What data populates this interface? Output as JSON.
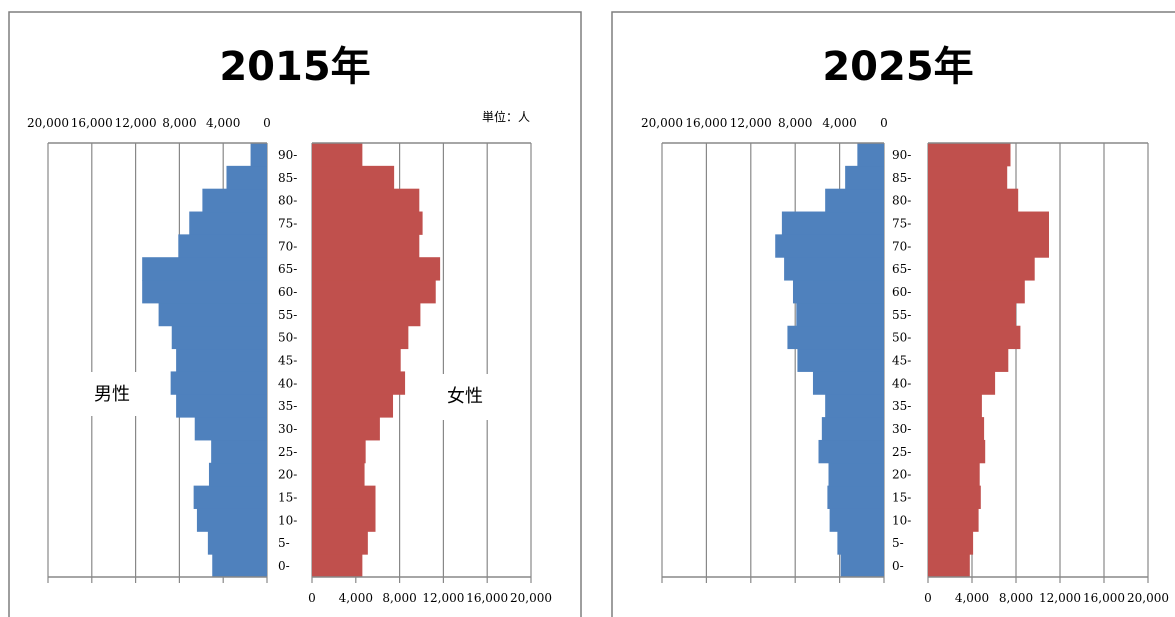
{
  "colors": {
    "male": "#4f81bd",
    "female": "#c0504d",
    "grid": "#888888",
    "frame": "#7f7f7f"
  },
  "chart_data": [
    {
      "type": "bar",
      "subtype": "population-pyramid",
      "title": "2015年",
      "unit_label": "単位：人",
      "male_label": "男性",
      "female_label": "女性",
      "xlim": [
        0,
        20000
      ],
      "x_ticks": [
        "0",
        "4,000",
        "8,000",
        "12,000",
        "16,000",
        "20,000"
      ],
      "male_ticks": [
        "20,000",
        "16,000",
        "12,000",
        "8,000",
        "4,000",
        "0"
      ],
      "age_labels": [
        "0-",
        "5-",
        "10-",
        "15-",
        "20-",
        "25-",
        "30-",
        "35-",
        "40-",
        "45-",
        "50-",
        "55-",
        "60-",
        "65-",
        "70-",
        "75-",
        "80-",
        "85-",
        "90-"
      ],
      "series": [
        {
          "name": "男性",
          "values": [
            5000,
            5400,
            6400,
            6700,
            5300,
            5100,
            6600,
            8300,
            8800,
            8300,
            8700,
            9900,
            11400,
            11400,
            8100,
            7100,
            5900,
            3700,
            1500
          ]
        },
        {
          "name": "女性",
          "values": [
            4600,
            5100,
            5800,
            5800,
            4800,
            4900,
            6200,
            7400,
            8500,
            8100,
            8800,
            9900,
            11300,
            11700,
            9800,
            10100,
            9800,
            7500,
            4600
          ]
        }
      ]
    },
    {
      "type": "bar",
      "subtype": "population-pyramid",
      "title": "2025年",
      "unit_label": "",
      "male_label": "",
      "female_label": "",
      "xlim": [
        0,
        20000
      ],
      "x_ticks": [
        "0",
        "4,000",
        "8,000",
        "12,000",
        "16,000",
        "20,000"
      ],
      "male_ticks": [
        "20,000",
        "16,000",
        "12,000",
        "8,000",
        "4,000",
        "0"
      ],
      "age_labels": [
        "0-",
        "5-",
        "10-",
        "15-",
        "20-",
        "25-",
        "30-",
        "35-",
        "40-",
        "45-",
        "50-",
        "55-",
        "60-",
        "65-",
        "70-",
        "75-",
        "80-",
        "85-",
        "90-"
      ],
      "series": [
        {
          "name": "男性",
          "values": [
            3900,
            4200,
            4900,
            5100,
            5000,
            5900,
            5600,
            5300,
            6400,
            7800,
            8700,
            7900,
            8200,
            9000,
            9800,
            9200,
            5300,
            3500,
            2400
          ]
        },
        {
          "name": "女性",
          "values": [
            3800,
            4100,
            4600,
            4800,
            4700,
            5200,
            5100,
            4900,
            6100,
            7300,
            8400,
            8000,
            8800,
            9700,
            11000,
            11000,
            8200,
            7200,
            7500
          ]
        }
      ]
    }
  ]
}
